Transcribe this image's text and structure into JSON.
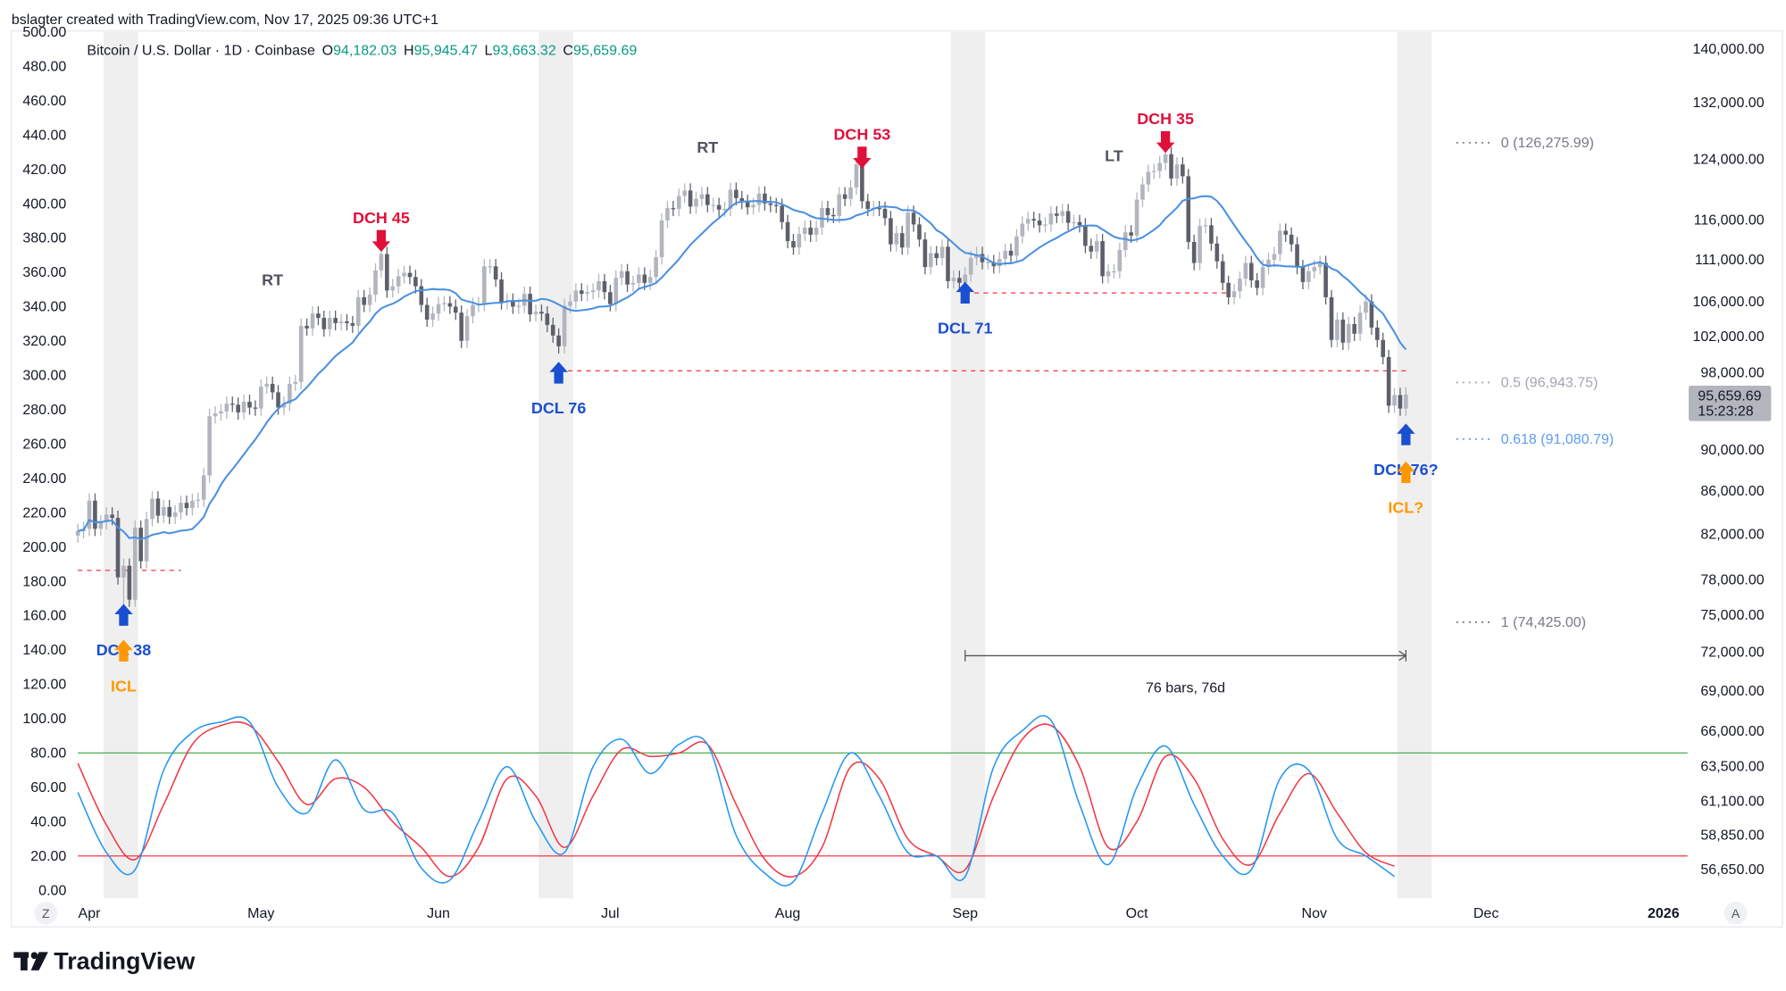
{
  "header": {
    "credit": "bslagter created with TradingView.com, Nov 17, 2025 09:36 UTC+1",
    "symbol": "Bitcoin / U.S. Dollar · 1D · Coinbase",
    "o_label": "O",
    "o_value": "94,182.03",
    "h_label": "H",
    "h_value": "95,945.47",
    "l_label": "L",
    "l_value": "93,663.32",
    "c_label": "C",
    "c_value": "95,659.69"
  },
  "colors": {
    "candle_up": "#b2b5be",
    "candle_down": "#5d606b",
    "ma_line": "#4a90e2",
    "osc_fast": "#2196f3",
    "osc_slow": "#f23645",
    "level_high": "#4caf50",
    "level_low": "#f23645",
    "dch": "#e0103a",
    "dcl": "#1a4fd1",
    "icl": "#ff9800",
    "band": "#efefef",
    "ohlc_value": "#089981"
  },
  "chart_data": {
    "type": "candlestick",
    "series_start": "2025-03-30",
    "closes": [
      82300,
      82500,
      85100,
      82500,
      83100,
      83800,
      83500,
      78200,
      79200,
      76300,
      82600,
      79600,
      83400,
      85300,
      83700,
      84500,
      83600,
      84000,
      84900,
      84400,
      85100,
      85200,
      87500,
      93400,
      93700,
      93900,
      94700,
      94600,
      93800,
      94900,
      94300,
      94200,
      96500,
      96800,
      95900,
      94300,
      94700,
      96800,
      97000,
      103200,
      102900,
      104600,
      104100,
      102800,
      104100,
      103500,
      103700,
      103500,
      103200,
      106500,
      105600,
      106800,
      109700,
      111700,
      107300,
      107800,
      109000,
      109400,
      108900,
      107800,
      105600,
      103900,
      104600,
      105700,
      105800,
      105400,
      104700,
      101500,
      104300,
      105600,
      105700,
      110200,
      110200,
      108600,
      105900,
      106100,
      105400,
      105500,
      106900,
      104500,
      104800,
      104600,
      103300,
      102100,
      100900,
      105500,
      106000,
      107300,
      106900,
      107100,
      107300,
      108400,
      107100,
      105700,
      108800,
      109600,
      108000,
      108200,
      109200,
      108200,
      108900,
      111300,
      115900,
      117500,
      117400,
      119100,
      119800,
      117700,
      118700,
      119300,
      117900,
      117900,
      117300,
      117400,
      119900,
      118800,
      118300,
      117600,
      117900,
      119400,
      118100,
      117900,
      117800,
      115700,
      113300,
      112500,
      114200,
      115000,
      114100,
      115000,
      117500,
      116600,
      116500,
      119300,
      118700,
      120200,
      123300,
      118400,
      117400,
      117500,
      117400,
      116200,
      112900,
      114300,
      112500,
      116900,
      115400,
      113500,
      110100,
      111800,
      111200,
      112600,
      108400,
      108800,
      108200,
      109200,
      111200,
      111700,
      110700,
      110700,
      110200,
      111100,
      112100,
      111500,
      113900,
      115500,
      116100,
      115900,
      115300,
      115400,
      116800,
      116500,
      117100,
      115600,
      115700,
      115300,
      112700,
      112000,
      113300,
      109000,
      109600,
      109600,
      112200,
      114400,
      114000,
      118600,
      120600,
      122300,
      122400,
      123500,
      124700,
      121400,
      123300,
      121700,
      113200,
      110600,
      115200,
      115300,
      113000,
      110800,
      108200,
      106500,
      107200,
      108700,
      110600,
      108500,
      107600,
      110100,
      111000,
      111700,
      114600,
      114100,
      112900,
      110100,
      108300,
      109600,
      110100,
      110600,
      106500,
      101600,
      103900,
      101300,
      103400,
      102300,
      104700,
      106000,
      103000,
      101600,
      99700,
      94500,
      95600,
      94200,
      95659.69
    ],
    "extremes": [
      {
        "date": "2025-04-07",
        "low": 74425.0
      },
      {
        "date": "2025-10-06",
        "high": 126275.99
      }
    ],
    "right_axis": {
      "scale": "log",
      "ticks": [
        "140,000.00",
        "132,000.00",
        "124,000.00",
        "116,000.00",
        "111,000.00",
        "106,000.00",
        "102,000.00",
        "98,000.00",
        "90,000.00",
        "86,000.00",
        "82,000.00",
        "78,000.00",
        "75,000.00",
        "72,000.00",
        "69,000.00",
        "66,000.00",
        "63,500.00",
        "61,100.00",
        "58,850.00",
        "56,650.00"
      ],
      "last_price": "95,659.69",
      "countdown": "15:23:28"
    },
    "left_axis": {
      "range": [
        0,
        500
      ],
      "ticks": [
        "500.00",
        "480.00",
        "460.00",
        "440.00",
        "420.00",
        "400.00",
        "380.00",
        "360.00",
        "340.00",
        "320.00",
        "300.00",
        "280.00",
        "260.00",
        "240.00",
        "220.00",
        "200.00",
        "180.00",
        "160.00",
        "140.00",
        "120.00",
        "100.00",
        "80.00",
        "60.00",
        "40.00",
        "20.00",
        "0.00"
      ]
    },
    "x_axis": {
      "ticks": [
        {
          "label": "Apr",
          "date": "2025-04-01"
        },
        {
          "label": "May",
          "date": "2025-05-01"
        },
        {
          "label": "Jun",
          "date": "2025-06-01"
        },
        {
          "label": "Jul",
          "date": "2025-07-01"
        },
        {
          "label": "Aug",
          "date": "2025-08-01"
        },
        {
          "label": "Sep",
          "date": "2025-09-01"
        },
        {
          "label": "Oct",
          "date": "2025-10-01"
        },
        {
          "label": "Nov",
          "date": "2025-11-01"
        },
        {
          "label": "Dec",
          "date": "2025-12-01"
        },
        {
          "label": "2026",
          "date": "2026-01-01",
          "bold": true
        }
      ]
    },
    "moving_average": {
      "period": 14
    },
    "oscillator": {
      "step_days": 5,
      "levels": [
        80,
        20
      ],
      "fast": [
        57,
        22,
        12,
        70,
        92,
        98,
        98,
        60,
        45,
        76,
        47,
        45,
        13,
        6,
        40,
        72,
        40,
        22,
        72,
        88,
        68,
        85,
        85,
        32,
        10,
        5,
        45,
        80,
        55,
        22,
        20,
        8,
        72,
        93,
        99,
        50,
        15,
        60,
        84,
        50,
        20,
        12,
        65,
        70,
        30,
        20,
        8
      ],
      "slow": [
        74,
        38,
        18,
        50,
        85,
        96,
        96,
        75,
        50,
        65,
        60,
        40,
        25,
        8,
        25,
        65,
        55,
        25,
        55,
        82,
        78,
        80,
        85,
        50,
        18,
        8,
        25,
        72,
        65,
        30,
        20,
        12,
        55,
        88,
        96,
        72,
        25,
        40,
        78,
        65,
        30,
        15,
        45,
        68,
        45,
        22,
        14
      ]
    },
    "bands": [
      {
        "from": "2025-04-04",
        "to": "2025-04-09"
      },
      {
        "from": "2025-06-19",
        "to": "2025-06-24"
      },
      {
        "from": "2025-08-30",
        "to": "2025-09-04"
      },
      {
        "from": "2025-11-16",
        "to": "2025-11-21"
      }
    ],
    "annotations": [
      {
        "text": "DCL 38",
        "date": "2025-04-07",
        "price": 72200,
        "kind": "dcl",
        "arrow": "up"
      },
      {
        "text": "ICL",
        "date": "2025-04-07",
        "price": 69400,
        "kind": "icl",
        "arrow": "up"
      },
      {
        "text": "RT",
        "date": "2025-05-03",
        "price": 108600,
        "kind": "phase"
      },
      {
        "text": "DCH 45",
        "date": "2025-05-22",
        "price": 116300,
        "kind": "dch",
        "arrow": "down"
      },
      {
        "text": "DCL 76",
        "date": "2025-06-22",
        "price": 94300,
        "kind": "dcl",
        "arrow": "up"
      },
      {
        "text": "RT",
        "date": "2025-07-18",
        "price": 125700,
        "kind": "phase"
      },
      {
        "text": "DCH 53",
        "date": "2025-08-14",
        "price": 127500,
        "kind": "dch",
        "arrow": "down"
      },
      {
        "text": "DCL 71",
        "date": "2025-09-01",
        "price": 103000,
        "kind": "dcl",
        "arrow": "up"
      },
      {
        "text": "LT",
        "date": "2025-09-27",
        "price": 124500,
        "kind": "phase"
      },
      {
        "text": "DCH 35",
        "date": "2025-10-06",
        "price": 129700,
        "kind": "dch",
        "arrow": "down"
      },
      {
        "text": "DCL 76?",
        "date": "2025-11-17",
        "price": 88100,
        "kind": "dcl",
        "arrow": "up"
      },
      {
        "text": "ICL?",
        "date": "2025-11-17",
        "price": 84500,
        "kind": "icl",
        "arrow": "up"
      }
    ],
    "support_lines": [
      {
        "price": 78800,
        "from": "2025-03-30",
        "to": "2025-04-17"
      },
      {
        "price": 98200,
        "from": "2025-06-22",
        "to": "2025-11-17"
      },
      {
        "price": 107000,
        "from": "2025-09-01",
        "to": "2025-10-17"
      }
    ],
    "fibonacci": [
      {
        "label": "0 (126,275.99)",
        "price": 126275.99,
        "color": "#787b86"
      },
      {
        "label": "0.5 (96,943.75)",
        "price": 96943.75,
        "color": "#a3a6af"
      },
      {
        "label": "0.618 (91,080.79)",
        "price": 91080.79,
        "color": "#5b9cf6"
      },
      {
        "label": "1 (74,425.00)",
        "price": 74425.0,
        "color": "#787b86"
      }
    ],
    "measure": {
      "from": "2025-09-01",
      "to": "2025-11-17",
      "label": "76 bars, 76d"
    }
  },
  "footer": {
    "logo_text": "TradingView",
    "z_button": "Z",
    "a_button": "A"
  }
}
